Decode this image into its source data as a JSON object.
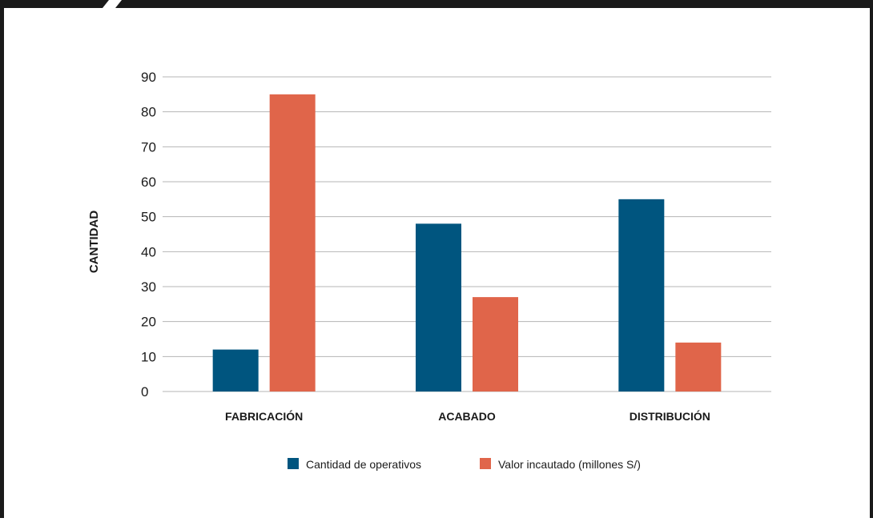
{
  "chart_data": {
    "type": "bar",
    "categories": [
      "FABRICACIÓN",
      "ACABADO",
      "DISTRIBUCIÓN"
    ],
    "series": [
      {
        "name": "Cantidad de operativos",
        "values": [
          12,
          48,
          55
        ],
        "color": "#00557f"
      },
      {
        "name": "Valor incautado (millones S/)",
        "values": [
          85,
          27,
          14
        ],
        "color": "#e0654a"
      }
    ],
    "ylabel": "CANTIDAD",
    "ylim": [
      0,
      90
    ],
    "yticks": [
      0,
      10,
      20,
      30,
      40,
      50,
      60,
      70,
      80,
      90
    ],
    "grid": true,
    "legend": "bottom"
  },
  "colors": {
    "frame": "#1a1a1a",
    "gridline": "#b5b5b5",
    "text": "#1a1a1a"
  }
}
